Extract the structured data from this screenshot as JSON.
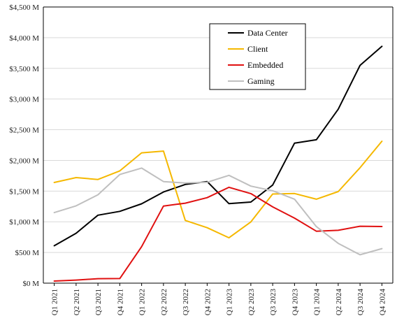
{
  "chart_data": {
    "type": "line",
    "categories": [
      "Q1 2021",
      "Q2 2021",
      "Q3 2021",
      "Q4 2021",
      "Q1 2022",
      "Q2 2022",
      "Q3 2022",
      "Q4 2022",
      "Q1 2023",
      "Q2 2023",
      "Q3 2023",
      "Q4 2023",
      "Q1 2024",
      "Q2 2024",
      "Q3 2024",
      "Q4 2024"
    ],
    "y_ticks": [
      "$0 M",
      "$500 M",
      "$1,000 M",
      "$1,500 M",
      "$2,000 M",
      "$2,500 M",
      "$3,000 M",
      "$3,500 M",
      "$4,000 M",
      "$4,500 M"
    ],
    "ylim": [
      0,
      4500
    ],
    "grid": true,
    "legend_position": "top-right",
    "series": [
      {
        "name": "Data Center",
        "color": "#000000",
        "values": [
          610,
          813,
          1107,
          1170,
          1293,
          1486,
          1609,
          1655,
          1295,
          1321,
          1598,
          2282,
          2337,
          2834,
          3549,
          3859
        ]
      },
      {
        "name": "Client",
        "color": "#f5b800",
        "values": [
          1640,
          1720,
          1690,
          1830,
          2124,
          2152,
          1022,
          903,
          739,
          998,
          1453,
          1461,
          1368,
          1492,
          1881,
          2313
        ]
      },
      {
        "name": "Embedded",
        "color": "#e01010",
        "values": [
          34,
          50,
          73,
          75,
          595,
          1257,
          1303,
          1393,
          1562,
          1459,
          1243,
          1059,
          846,
          861,
          927,
          923
        ]
      },
      {
        "name": "Gaming",
        "color": "#bfbfbf",
        "values": [
          1150,
          1260,
          1440,
          1770,
          1875,
          1655,
          1631,
          1644,
          1757,
          1581,
          1506,
          1368,
          922,
          648,
          462,
          563
        ]
      }
    ]
  }
}
